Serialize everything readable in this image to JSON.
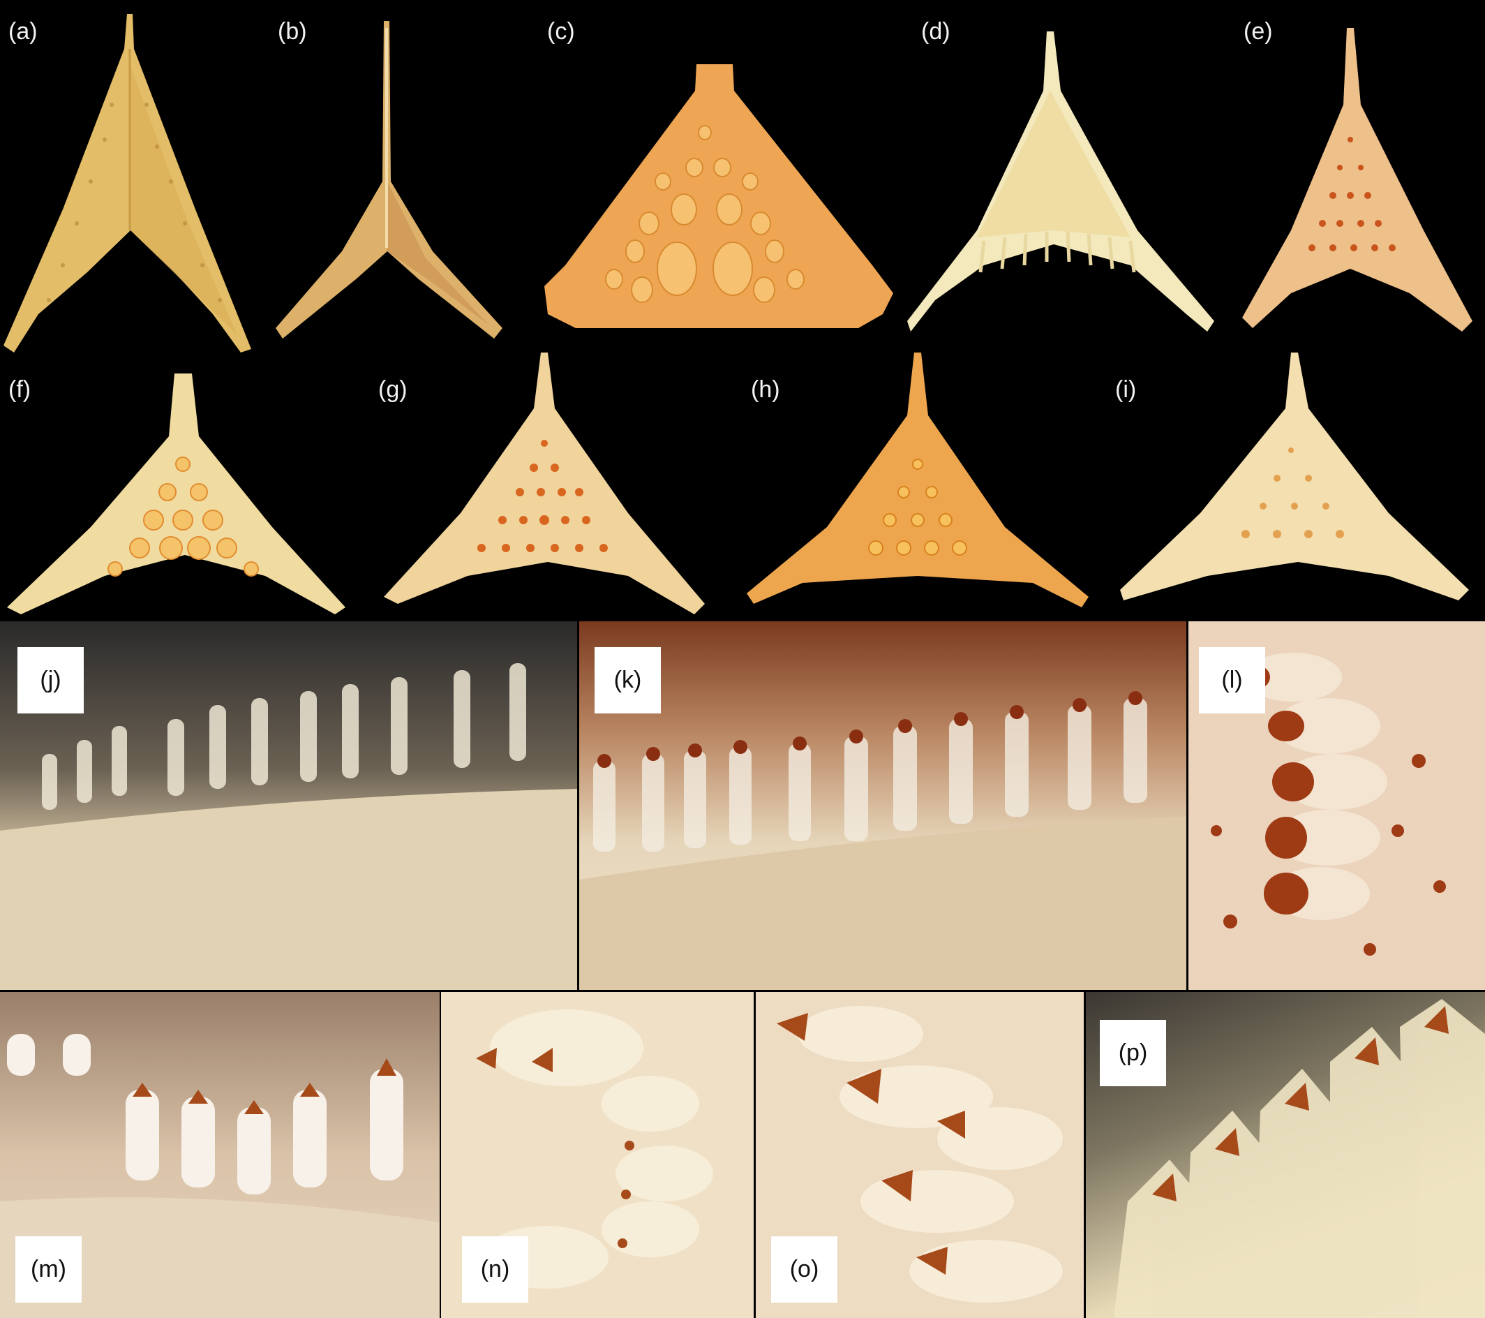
{
  "figure": {
    "background": "#000000",
    "panels": [
      {
        "id": "a",
        "label": "(a)"
      },
      {
        "id": "b",
        "label": "(b)"
      },
      {
        "id": "c",
        "label": "(c)"
      },
      {
        "id": "d",
        "label": "(d)"
      },
      {
        "id": "e",
        "label": "(e)"
      },
      {
        "id": "f",
        "label": "(f)"
      },
      {
        "id": "g",
        "label": "(g)"
      },
      {
        "id": "h",
        "label": "(h)"
      },
      {
        "id": "i",
        "label": "(i)"
      },
      {
        "id": "j",
        "label": "(j)"
      },
      {
        "id": "k",
        "label": "(k)"
      },
      {
        "id": "l",
        "label": "(l)"
      },
      {
        "id": "m",
        "label": "(m)"
      },
      {
        "id": "n",
        "label": "(n)"
      },
      {
        "id": "o",
        "label": "(o)"
      },
      {
        "id": "p",
        "label": "(p)"
      }
    ],
    "colors": {
      "plate_yellow": "#e8c878",
      "plate_cream": "#f2e8bf",
      "plate_orange": "#eea64e",
      "tubercle_orange": "#e98a2e",
      "tip_brown": "#9a3b12"
    }
  }
}
